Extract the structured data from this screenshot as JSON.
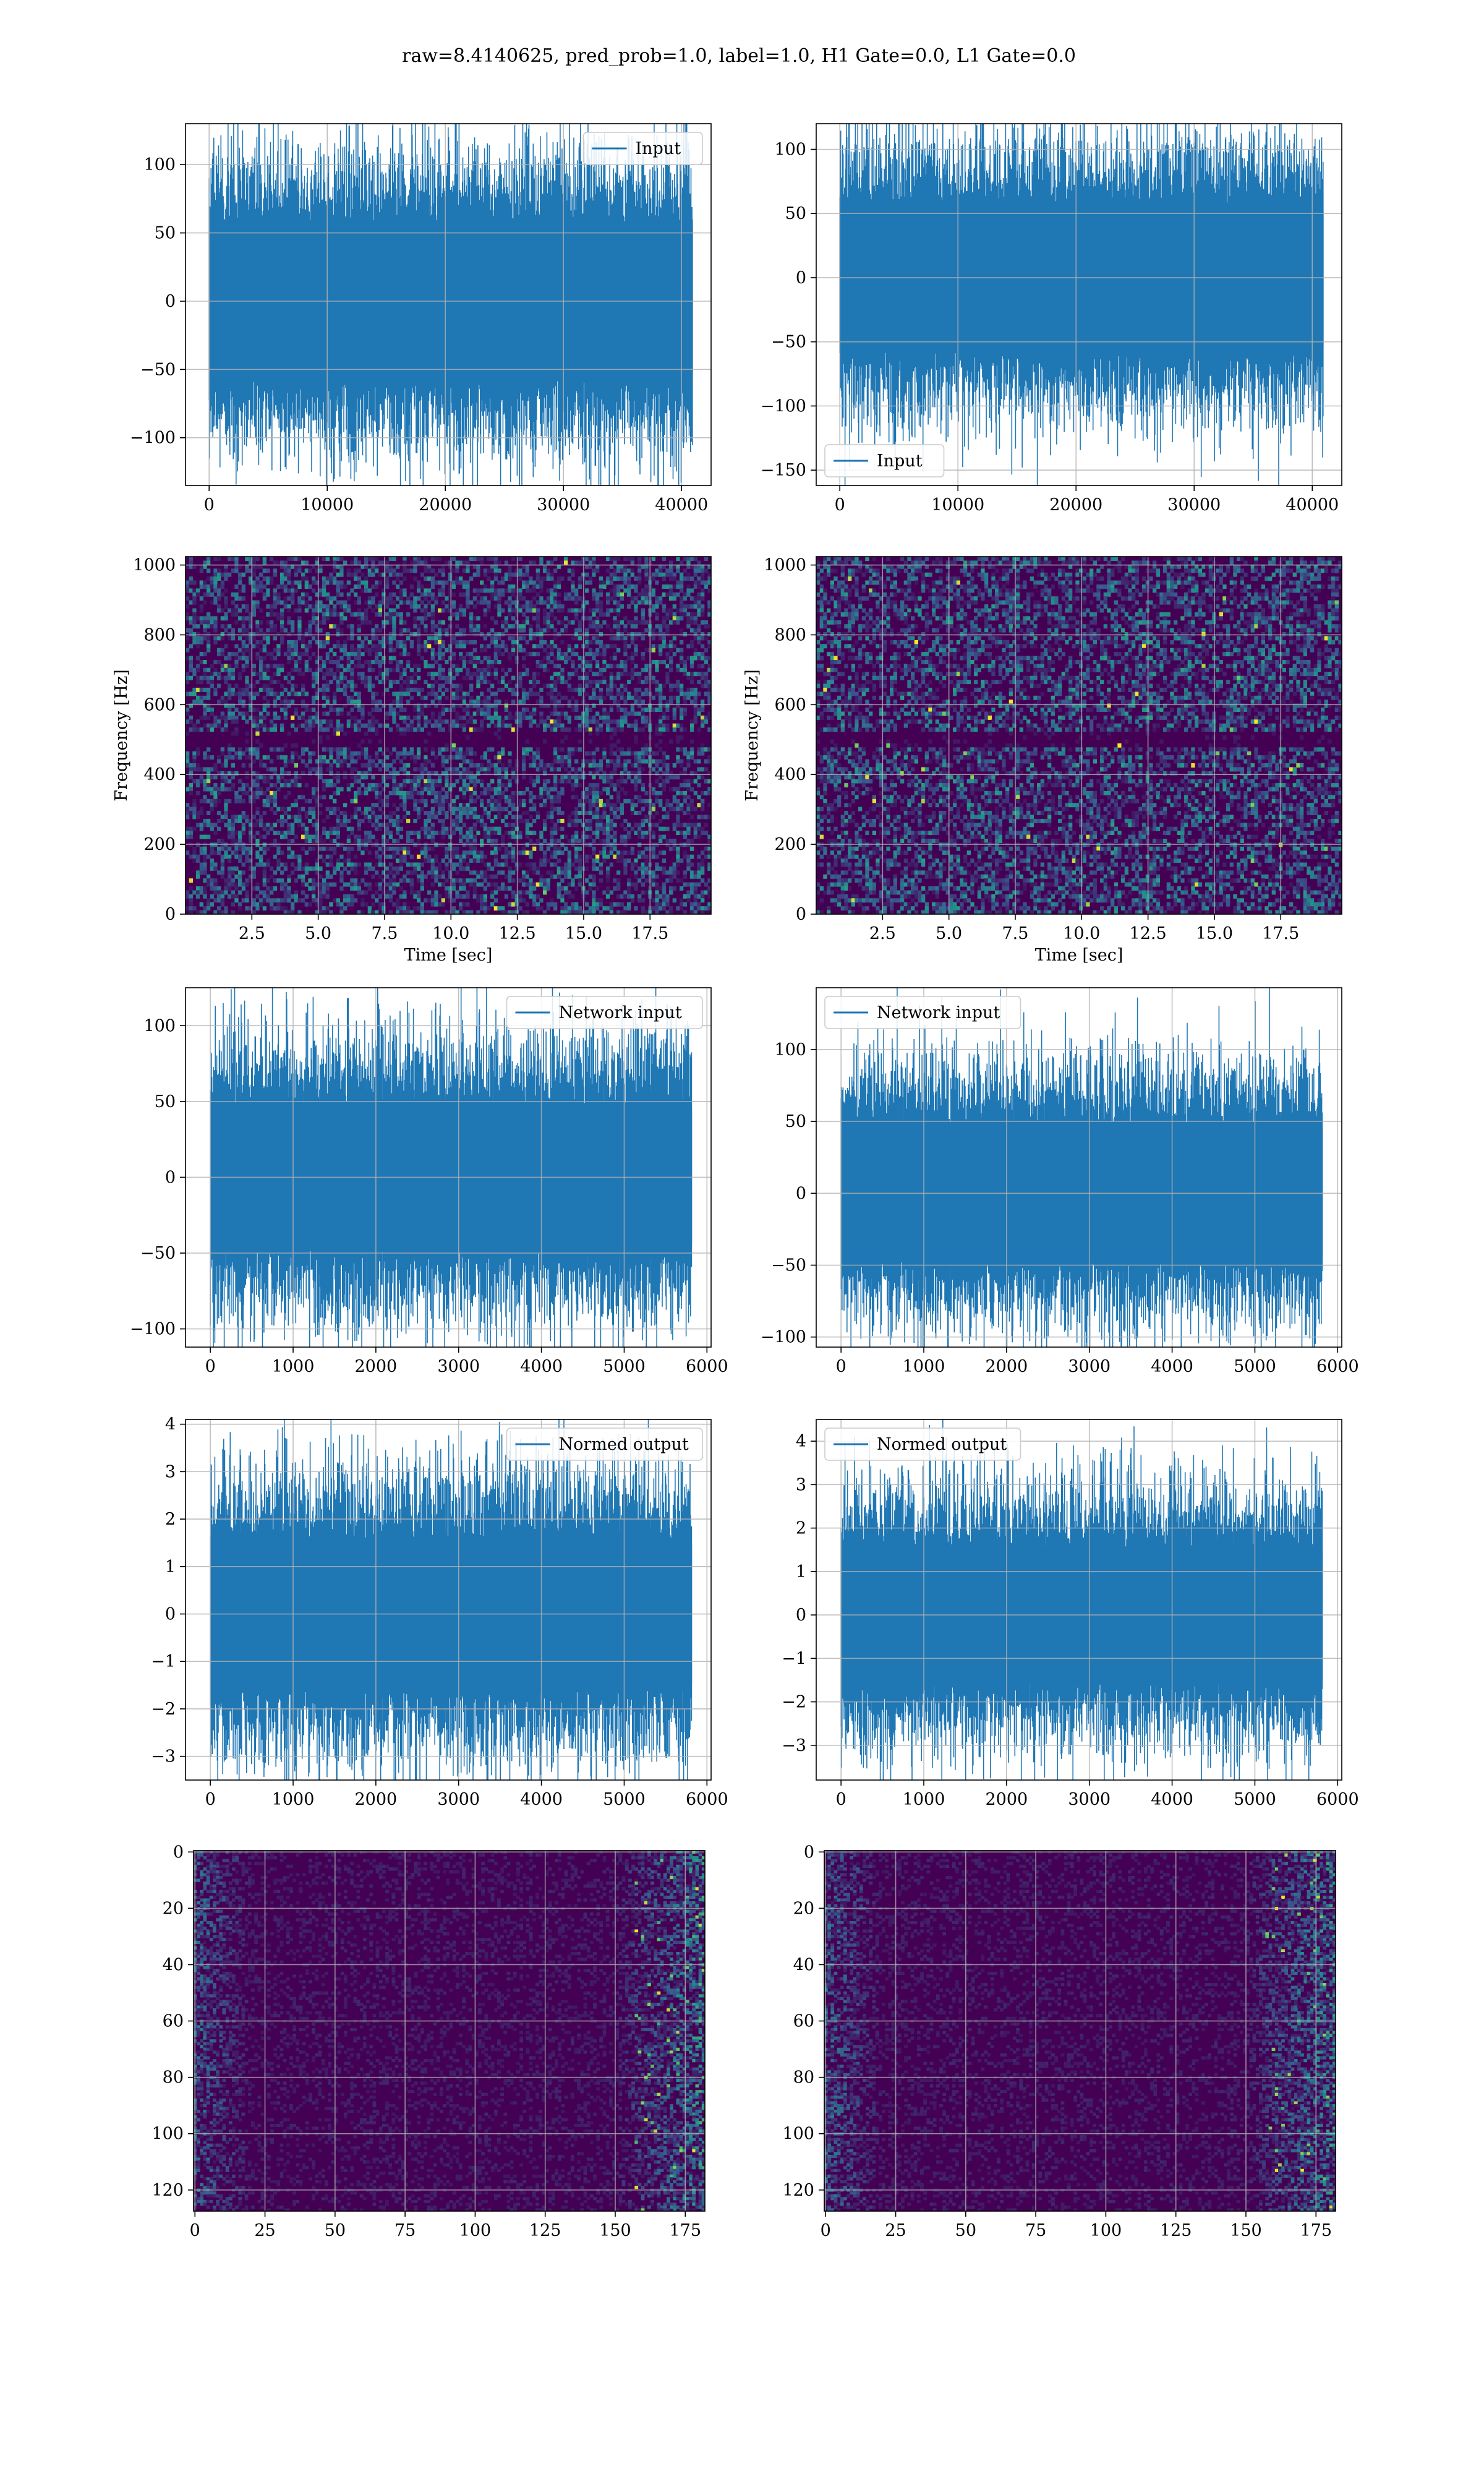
{
  "suptitle": "raw=8.4140625, pred_prob=1.0, label=1.0, H1 Gate=0.0, L1 Gate=0.0",
  "colors": {
    "series": "#1f77b4",
    "grid": "#b0b0b0",
    "heat_low": "#440154",
    "heat_mid": "#21918c",
    "heat_high": "#fde725"
  },
  "chart_data": [
    {
      "id": "r1c1",
      "type": "line",
      "legend": "Input",
      "legend_loc": "upper right",
      "xlim": [
        -2000,
        42500
      ],
      "xticks": [
        0,
        10000,
        20000,
        30000,
        40000
      ],
      "ylim": [
        -135,
        130
      ],
      "yticks": [
        -100,
        -50,
        0,
        50,
        100
      ],
      "n_points": 40960,
      "envelope": {
        "core": 38,
        "peak_max": 120,
        "peak_min": -122
      },
      "grid": true
    },
    {
      "id": "r1c2",
      "type": "line",
      "legend": "Input",
      "legend_loc": "lower left",
      "xlim": [
        -2000,
        42500
      ],
      "xticks": [
        0,
        10000,
        20000,
        30000,
        40000
      ],
      "ylim": [
        -162,
        120
      ],
      "yticks": [
        -150,
        -100,
        -50,
        0,
        50,
        100
      ],
      "n_points": 40960,
      "envelope": {
        "core": 38,
        "peak_max": 110,
        "peak_min": -130
      },
      "grid": true
    },
    {
      "id": "r2c1",
      "type": "heatmap",
      "xlabel": "Time [sec]",
      "ylabel": "Frequency [Hz]",
      "xlim": [
        0,
        19.8
      ],
      "xticks": [
        "2.5",
        "5.0",
        "7.5",
        "10.0",
        "12.5",
        "15.0",
        "17.5"
      ],
      "ylim": [
        0,
        1024
      ],
      "yticks": [
        0,
        200,
        400,
        600,
        800,
        1000
      ],
      "band_hz": 500,
      "grid": true
    },
    {
      "id": "r2c2",
      "type": "heatmap",
      "xlabel": "Time [sec]",
      "ylabel": "Frequency [Hz]",
      "xlim": [
        0,
        19.8
      ],
      "xticks": [
        "2.5",
        "5.0",
        "7.5",
        "10.0",
        "12.5",
        "15.0",
        "17.5"
      ],
      "ylim": [
        0,
        1024
      ],
      "yticks": [
        0,
        200,
        400,
        600,
        800,
        1000
      ],
      "band_hz": 500,
      "grid": true
    },
    {
      "id": "r3c1",
      "type": "line",
      "legend": "Network input",
      "legend_loc": "upper right",
      "xlim": [
        -300,
        6050
      ],
      "xticks": [
        0,
        1000,
        2000,
        3000,
        4000,
        5000,
        6000
      ],
      "ylim": [
        -112,
        125
      ],
      "yticks": [
        -100,
        -50,
        0,
        50,
        100
      ],
      "n_points": 5820,
      "envelope": {
        "core": 32,
        "peak_max": 116,
        "peak_min": -100
      },
      "grid": true
    },
    {
      "id": "r3c2",
      "type": "line",
      "legend": "Network input",
      "legend_loc": "upper left",
      "xlim": [
        -300,
        6050
      ],
      "xticks": [
        0,
        1000,
        2000,
        3000,
        4000,
        5000,
        6000
      ],
      "ylim": [
        -107,
        143
      ],
      "yticks": [
        -100,
        -50,
        0,
        50,
        100
      ],
      "n_points": 5820,
      "envelope": {
        "core": 32,
        "peak_max": 110,
        "peak_min": -105
      },
      "grid": true
    },
    {
      "id": "r4c1",
      "type": "line",
      "legend": "Normed output",
      "legend_loc": "upper right",
      "xlim": [
        -300,
        6050
      ],
      "xticks": [
        0,
        1000,
        2000,
        3000,
        4000,
        5000,
        6000
      ],
      "ylim": [
        -3.5,
        4.1
      ],
      "yticks": [
        -3,
        -2,
        -1,
        0,
        1,
        2,
        3,
        4
      ],
      "n_points": 5820,
      "envelope": {
        "core": 1.05,
        "peak_max": 3.8,
        "peak_min": -3.25
      },
      "grid": true
    },
    {
      "id": "r4c2",
      "type": "line",
      "legend": "Normed output",
      "legend_loc": "upper left",
      "xlim": [
        -300,
        6050
      ],
      "xticks": [
        0,
        1000,
        2000,
        3000,
        4000,
        5000,
        6000
      ],
      "ylim": [
        -3.8,
        4.5
      ],
      "yticks": [
        -3,
        -2,
        -1,
        0,
        1,
        2,
        3,
        4
      ],
      "n_points": 5820,
      "envelope": {
        "core": 1.05,
        "peak_max": 4.1,
        "peak_min": -3.5
      },
      "grid": true
    },
    {
      "id": "r5c1",
      "type": "heatmap",
      "ylim_inverted": true,
      "xlim": [
        -0.5,
        182
      ],
      "xticks": [
        0,
        25,
        50,
        75,
        100,
        125,
        150,
        175
      ],
      "ylim": [
        -0.5,
        127.5
      ],
      "yticks": [
        0,
        20,
        40,
        60,
        80,
        100,
        120
      ],
      "grid": true
    },
    {
      "id": "r5c2",
      "type": "heatmap",
      "ylim_inverted": true,
      "xlim": [
        -0.5,
        182
      ],
      "xticks": [
        0,
        25,
        50,
        75,
        100,
        125,
        150,
        175
      ],
      "ylim": [
        -0.5,
        127.5
      ],
      "yticks": [
        0,
        20,
        40,
        60,
        80,
        100,
        120
      ],
      "grid": true
    }
  ]
}
